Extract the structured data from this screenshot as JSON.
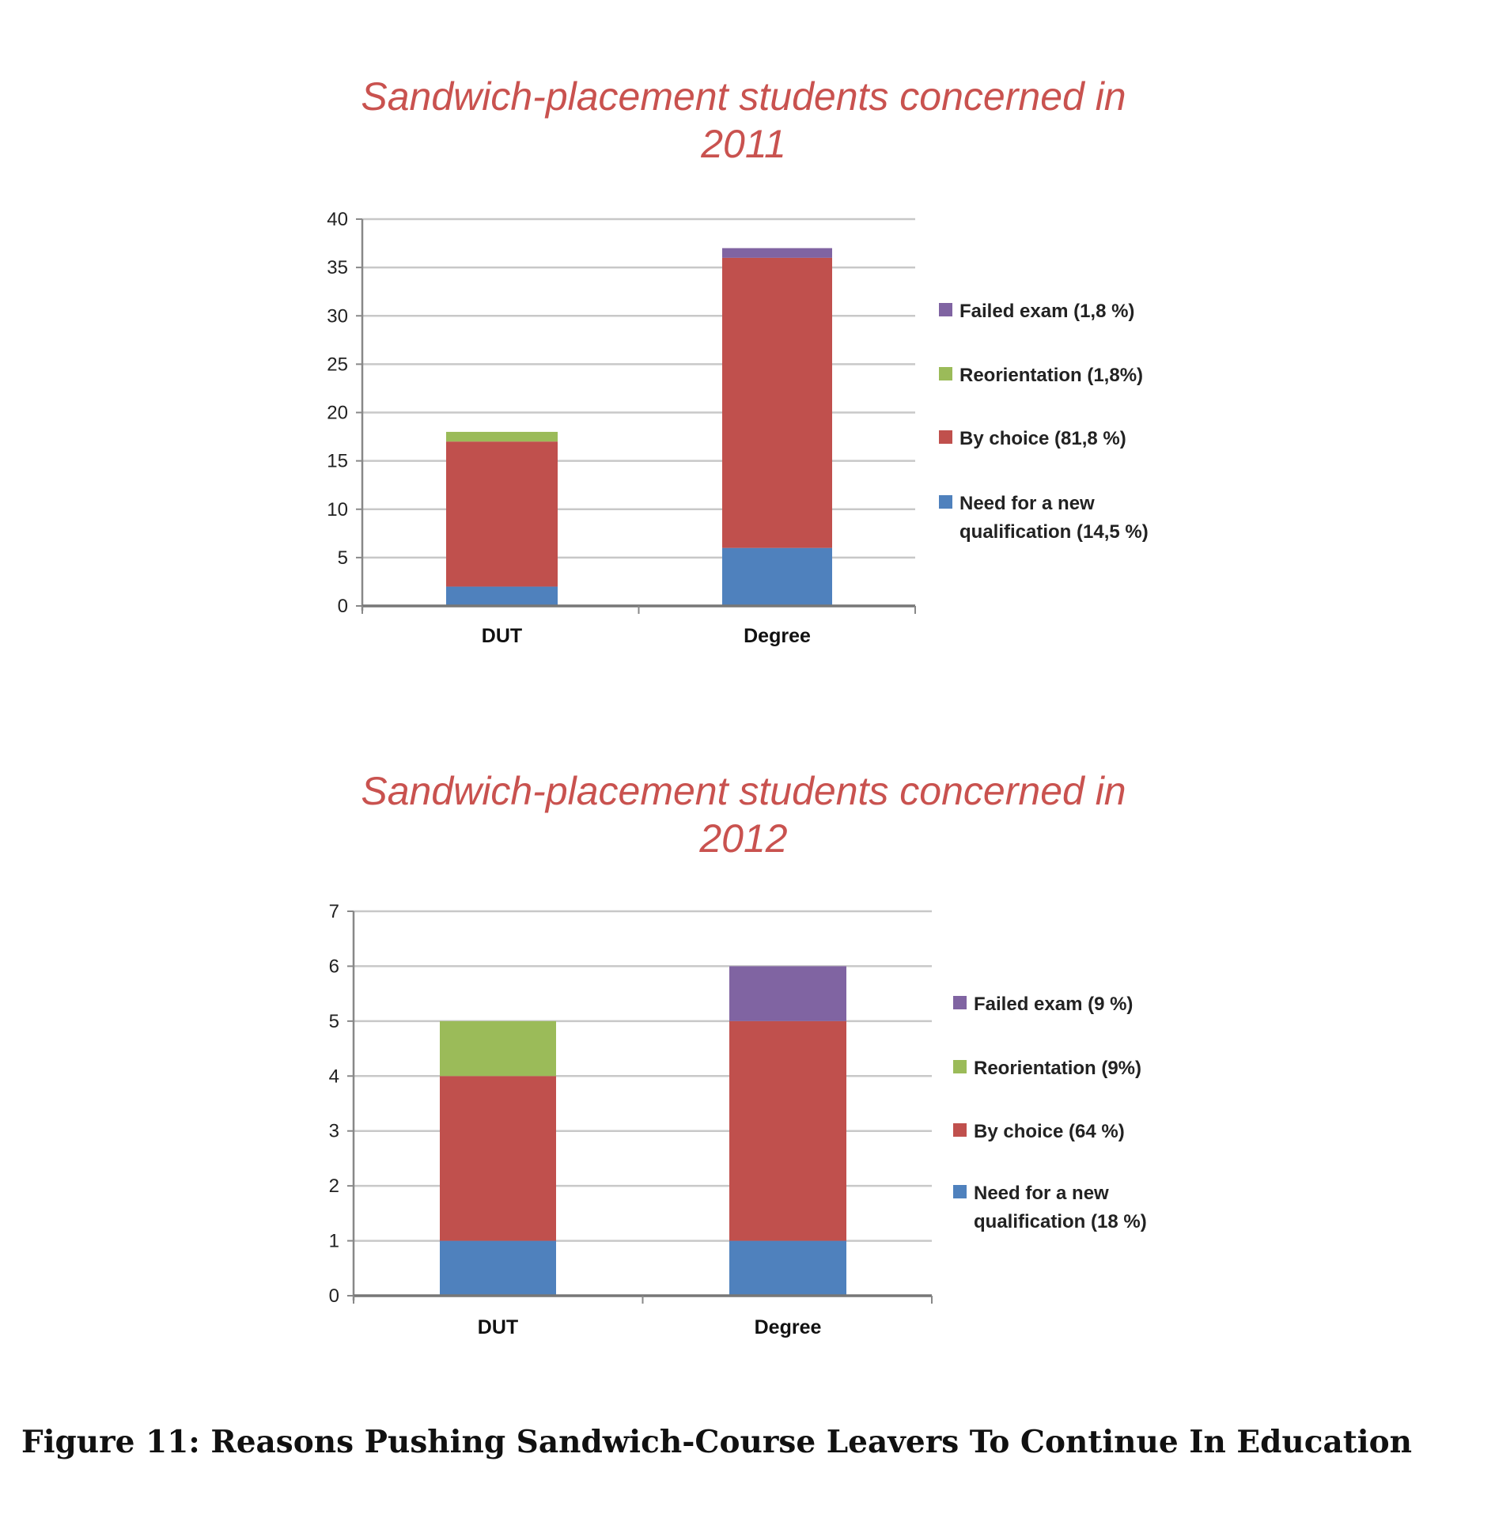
{
  "chart_data": [
    {
      "type": "bar",
      "stacked": true,
      "title": "Sandwich-placement students concerned in 2011",
      "title_lines": [
        "Sandwich-placement students concerned in",
        "2011"
      ],
      "categories": [
        "DUT",
        "Degree"
      ],
      "ylim": [
        0,
        40
      ],
      "yticks": [
        0,
        5,
        10,
        15,
        20,
        25,
        30,
        35,
        40
      ],
      "grid": true,
      "legend_position": "right",
      "series": [
        {
          "name": "Need for a new qualification (14,5 %)",
          "label_lines": [
            "Need for a new",
            "qualification (14,5 %)"
          ],
          "color": "#4f81bd",
          "values": [
            2,
            6
          ]
        },
        {
          "name": "By choice (81,8 %)",
          "label_lines": [
            "By choice (81,8 %)"
          ],
          "color": "#c0504d",
          "values": [
            15,
            30
          ]
        },
        {
          "name": "Reorientation (1,8%)",
          "label_lines": [
            "Reorientation (1,8%)"
          ],
          "color": "#9bbb59",
          "values": [
            1,
            0
          ]
        },
        {
          "name": "Failed exam (1,8 %)",
          "label_lines": [
            "Failed exam (1,8 %)"
          ],
          "color": "#8064a2",
          "values": [
            0,
            1
          ]
        }
      ]
    },
    {
      "type": "bar",
      "stacked": true,
      "title": "Sandwich-placement students concerned in 2012",
      "title_lines": [
        "Sandwich-placement students concerned in",
        "2012"
      ],
      "categories": [
        "DUT",
        "Degree"
      ],
      "ylim": [
        0,
        7
      ],
      "yticks": [
        0,
        1,
        2,
        3,
        4,
        5,
        6,
        7
      ],
      "grid": true,
      "legend_position": "right",
      "series": [
        {
          "name": "Need for a new qualification (18 %)",
          "label_lines": [
            "Need for a new",
            "qualification (18 %)"
          ],
          "color": "#4f81bd",
          "values": [
            1,
            1
          ]
        },
        {
          "name": "By choice (64 %)",
          "label_lines": [
            "By choice (64 %)"
          ],
          "color": "#c0504d",
          "values": [
            3,
            4
          ]
        },
        {
          "name": "Reorientation (9%)",
          "label_lines": [
            "Reorientation (9%)"
          ],
          "color": "#9bbb59",
          "values": [
            1,
            0
          ]
        },
        {
          "name": "Failed exam (9 %)",
          "label_lines": [
            "Failed exam (9 %)"
          ],
          "color": "#8064a2",
          "values": [
            0,
            1
          ]
        }
      ]
    }
  ],
  "caption": "Figure 11: Reasons Pushing Sandwich-Course Leavers To Continue In Education"
}
